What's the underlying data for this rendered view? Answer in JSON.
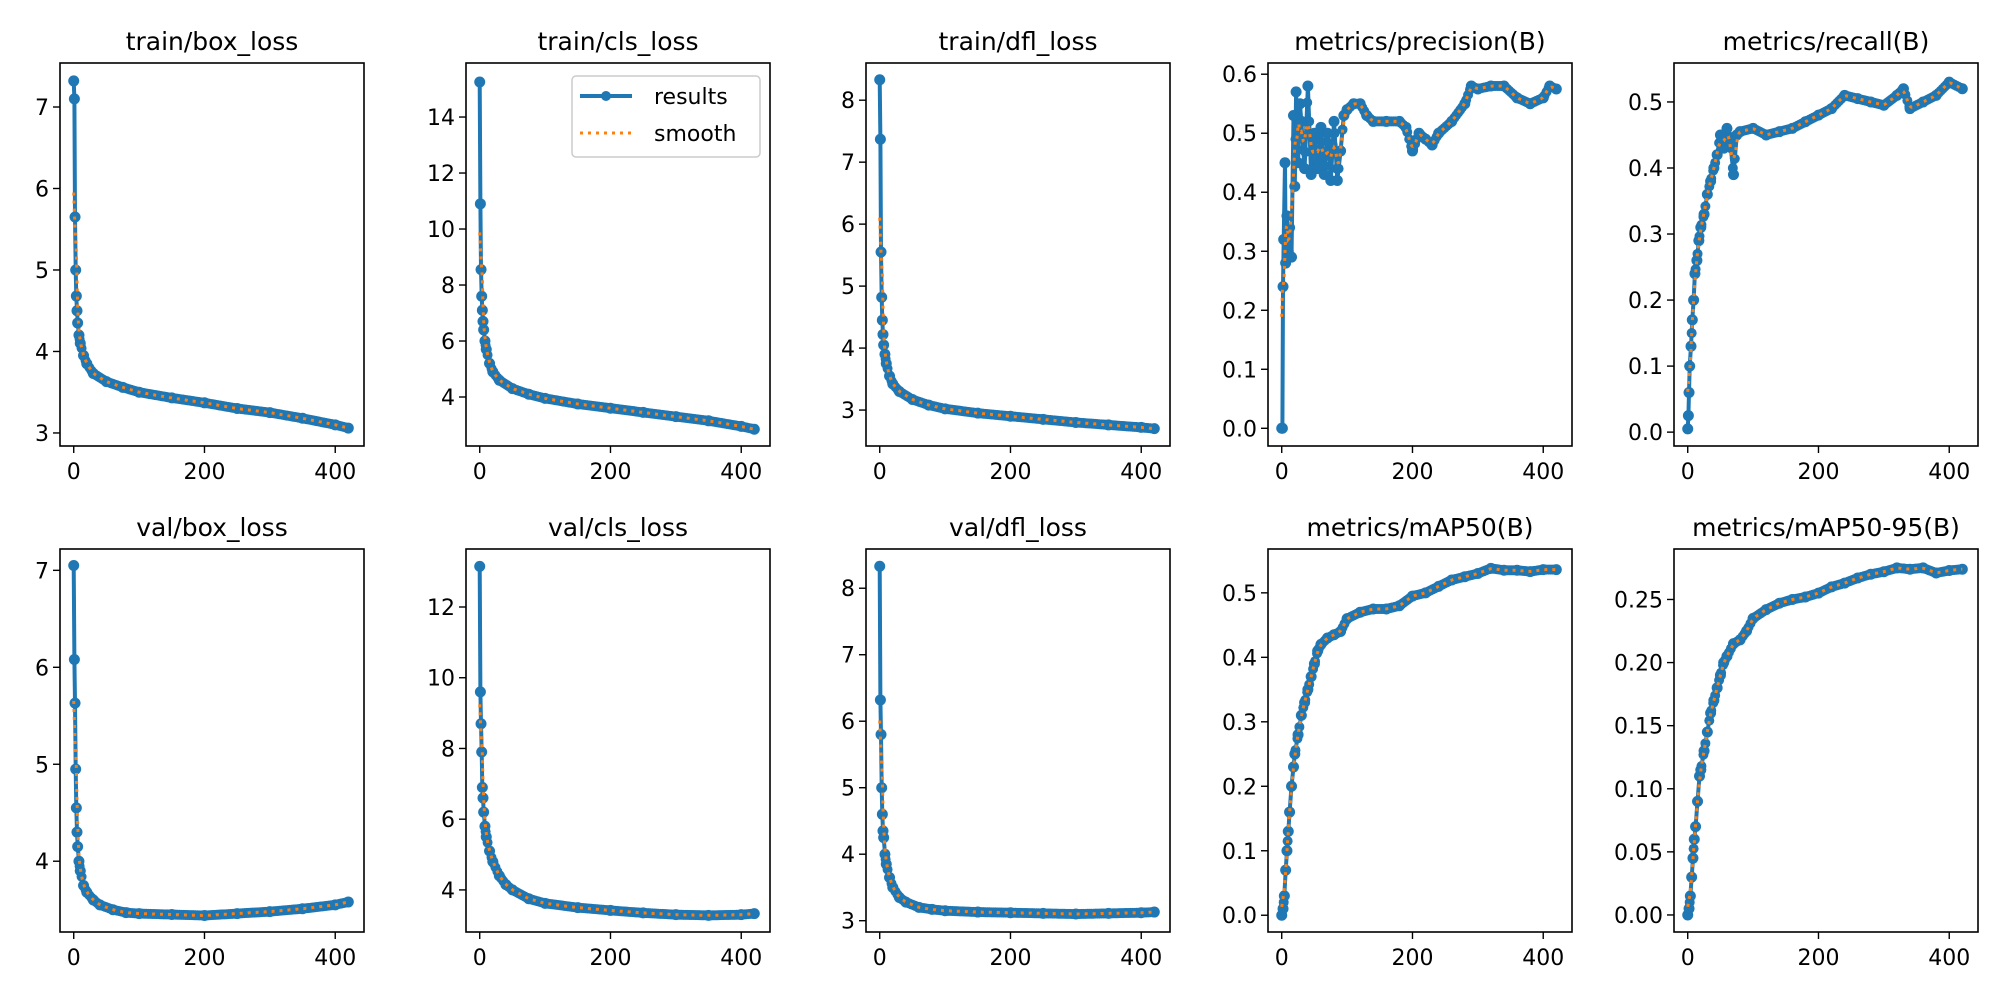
{
  "chart_data": {
    "type": "line",
    "layout": "2 rows x 5 columns",
    "legend": {
      "placement": "top-right",
      "panel": "train/cls_loss",
      "entries": [
        "results",
        "smooth"
      ]
    },
    "series_styles": {
      "results": {
        "color": "#1f77b4",
        "style": "solid line with circle markers"
      },
      "smooth": {
        "color": "#ff7f0e",
        "style": "dotted"
      }
    },
    "x_ticks": [
      0,
      200,
      400
    ],
    "xlim": [
      -21,
      444
    ],
    "panels": [
      {
        "title": "train/box_loss",
        "ylim": [
          2.84,
          7.54
        ],
        "y_ticks": [
          3,
          4,
          5,
          6,
          7
        ],
        "y_tick_labels": [
          "3",
          "4",
          "5",
          "6",
          "7"
        ],
        "x": [
          0,
          1,
          2,
          3,
          4,
          5,
          6,
          8,
          10,
          15,
          20,
          30,
          50,
          75,
          100,
          150,
          200,
          250,
          300,
          350,
          400,
          420
        ],
        "y": [
          7.32,
          7.1,
          5.65,
          5.0,
          4.68,
          4.5,
          4.35,
          4.2,
          4.1,
          3.95,
          3.85,
          3.73,
          3.63,
          3.56,
          3.5,
          3.43,
          3.37,
          3.3,
          3.25,
          3.18,
          3.1,
          3.06
        ]
      },
      {
        "title": "train/cls_loss",
        "ylim": [
          2.25,
          15.93
        ],
        "y_ticks": [
          4,
          6,
          8,
          10,
          12,
          14
        ],
        "y_tick_labels": [
          "4",
          "6",
          "8",
          "10",
          "12",
          "14"
        ],
        "x": [
          0,
          1,
          2,
          3,
          4,
          5,
          6,
          8,
          10,
          15,
          20,
          30,
          50,
          75,
          100,
          150,
          200,
          250,
          300,
          350,
          400,
          420
        ],
        "y": [
          15.25,
          10.9,
          8.55,
          7.6,
          7.1,
          6.7,
          6.4,
          6.0,
          5.7,
          5.2,
          4.9,
          4.6,
          4.3,
          4.1,
          3.95,
          3.75,
          3.6,
          3.45,
          3.3,
          3.15,
          2.95,
          2.85
        ]
      },
      {
        "title": "train/dfl_loss",
        "ylim": [
          2.42,
          8.6
        ],
        "y_ticks": [
          3,
          4,
          5,
          6,
          7,
          8
        ],
        "y_tick_labels": [
          "3",
          "4",
          "5",
          "6",
          "7",
          "8"
        ],
        "x": [
          0,
          1,
          2,
          3,
          4,
          5,
          6,
          8,
          10,
          15,
          20,
          30,
          50,
          75,
          100,
          150,
          200,
          250,
          300,
          350,
          400,
          420
        ],
        "y": [
          8.33,
          7.37,
          5.55,
          4.82,
          4.45,
          4.22,
          4.05,
          3.9,
          3.75,
          3.55,
          3.42,
          3.3,
          3.17,
          3.08,
          3.02,
          2.95,
          2.9,
          2.85,
          2.8,
          2.76,
          2.72,
          2.7
        ]
      },
      {
        "title": "metrics/precision(B)",
        "ylim": [
          -0.03,
          0.619
        ],
        "y_ticks": [
          0,
          0.1,
          0.2,
          0.3,
          0.4,
          0.5,
          0.6
        ],
        "y_tick_labels": [
          "0.0",
          "0.1",
          "0.2",
          "0.3",
          "0.4",
          "0.5",
          "0.6"
        ],
        "x": [
          0,
          1,
          2,
          3,
          5,
          6,
          8,
          10,
          12,
          15,
          18,
          20,
          22,
          25,
          28,
          30,
          35,
          40,
          45,
          50,
          55,
          60,
          65,
          70,
          75,
          80,
          85,
          90,
          95,
          100,
          110,
          120,
          130,
          140,
          160,
          180,
          190,
          200,
          210,
          220,
          230,
          240,
          260,
          280,
          290,
          300,
          320,
          340,
          360,
          380,
          400,
          410,
          420
        ],
        "y": [
          0,
          0,
          0.24,
          0.32,
          0.45,
          0.28,
          0.36,
          0.3,
          0.34,
          0.29,
          0.53,
          0.41,
          0.57,
          0.45,
          0.55,
          0.52,
          0.44,
          0.58,
          0.43,
          0.5,
          0.44,
          0.51,
          0.43,
          0.5,
          0.42,
          0.52,
          0.42,
          0.47,
          0.53,
          0.54,
          0.55,
          0.55,
          0.53,
          0.52,
          0.52,
          0.52,
          0.51,
          0.47,
          0.5,
          0.49,
          0.48,
          0.5,
          0.52,
          0.55,
          0.58,
          0.575,
          0.58,
          0.58,
          0.56,
          0.55,
          0.56,
          0.58,
          0.575
        ]
      },
      {
        "title": "metrics/recall(B)",
        "ylim": [
          -0.021,
          0.559
        ],
        "y_ticks": [
          0,
          0.1,
          0.2,
          0.3,
          0.4,
          0.5
        ],
        "y_tick_labels": [
          "0.0",
          "0.1",
          "0.2",
          "0.3",
          "0.4",
          "0.5"
        ],
        "x": [
          0,
          1,
          2,
          3,
          5,
          7,
          9,
          11,
          14,
          17,
          20,
          25,
          30,
          35,
          40,
          45,
          50,
          55,
          60,
          65,
          70,
          75,
          80,
          100,
          120,
          140,
          160,
          180,
          200,
          220,
          240,
          260,
          280,
          300,
          320,
          330,
          340,
          360,
          380,
          400,
          420
        ],
        "y": [
          0.005,
          0.025,
          0.06,
          0.1,
          0.13,
          0.17,
          0.2,
          0.24,
          0.26,
          0.29,
          0.31,
          0.33,
          0.36,
          0.38,
          0.4,
          0.42,
          0.45,
          0.43,
          0.46,
          0.44,
          0.39,
          0.45,
          0.455,
          0.46,
          0.45,
          0.455,
          0.46,
          0.47,
          0.48,
          0.49,
          0.51,
          0.505,
          0.5,
          0.495,
          0.51,
          0.52,
          0.49,
          0.5,
          0.51,
          0.53,
          0.52
        ]
      },
      {
        "title": "val/box_loss",
        "ylim": [
          3.27,
          7.22
        ],
        "y_ticks": [
          4,
          5,
          6,
          7
        ],
        "y_tick_labels": [
          "4",
          "5",
          "6",
          "7"
        ],
        "x": [
          0,
          1,
          2,
          3,
          4,
          5,
          6,
          8,
          10,
          15,
          20,
          30,
          40,
          60,
          80,
          100,
          150,
          200,
          250,
          300,
          350,
          400,
          420
        ],
        "y": [
          7.05,
          6.08,
          5.63,
          4.95,
          4.55,
          4.3,
          4.15,
          4.0,
          3.9,
          3.75,
          3.68,
          3.6,
          3.55,
          3.5,
          3.47,
          3.46,
          3.45,
          3.44,
          3.46,
          3.48,
          3.51,
          3.55,
          3.58
        ]
      },
      {
        "title": "val/cls_loss",
        "ylim": [
          2.81,
          13.64
        ],
        "y_ticks": [
          4,
          6,
          8,
          10,
          12
        ],
        "y_tick_labels": [
          "4",
          "6",
          "8",
          "10",
          "12"
        ],
        "x": [
          0,
          1,
          2,
          3,
          4,
          5,
          6,
          8,
          10,
          15,
          20,
          30,
          40,
          50,
          75,
          100,
          150,
          200,
          250,
          300,
          350,
          400,
          420
        ],
        "y": [
          13.15,
          9.6,
          8.7,
          7.9,
          6.9,
          6.6,
          6.2,
          5.8,
          5.5,
          5.1,
          4.8,
          4.4,
          4.15,
          4.0,
          3.75,
          3.62,
          3.5,
          3.42,
          3.35,
          3.3,
          3.28,
          3.3,
          3.33
        ]
      },
      {
        "title": "val/dfl_loss",
        "ylim": [
          2.83,
          8.59
        ],
        "y_ticks": [
          3,
          4,
          5,
          6,
          7,
          8
        ],
        "y_tick_labels": [
          "3",
          "4",
          "5",
          "6",
          "7",
          "8"
        ],
        "x": [
          0,
          1,
          2,
          3,
          4,
          5,
          6,
          8,
          10,
          15,
          20,
          30,
          40,
          60,
          80,
          100,
          150,
          200,
          250,
          300,
          350,
          400,
          420
        ],
        "y": [
          8.33,
          6.32,
          5.8,
          5.0,
          4.6,
          4.35,
          4.25,
          4.0,
          3.85,
          3.65,
          3.5,
          3.35,
          3.28,
          3.2,
          3.17,
          3.15,
          3.13,
          3.12,
          3.11,
          3.1,
          3.11,
          3.12,
          3.13
        ]
      },
      {
        "title": "metrics/mAP50(B)",
        "ylim": [
          -0.026,
          0.568
        ],
        "y_ticks": [
          0,
          0.1,
          0.2,
          0.3,
          0.4,
          0.5
        ],
        "y_tick_labels": [
          "0.0",
          "0.1",
          "0.2",
          "0.3",
          "0.4",
          "0.5"
        ],
        "x": [
          0,
          2,
          4,
          6,
          8,
          10,
          12,
          15,
          18,
          20,
          25,
          30,
          35,
          40,
          45,
          50,
          55,
          60,
          70,
          80,
          90,
          100,
          120,
          140,
          160,
          180,
          200,
          220,
          240,
          260,
          280,
          300,
          320,
          340,
          360,
          380,
          400,
          420
        ],
        "y": [
          0,
          0.01,
          0.03,
          0.07,
          0.1,
          0.13,
          0.16,
          0.2,
          0.23,
          0.25,
          0.28,
          0.31,
          0.33,
          0.35,
          0.37,
          0.39,
          0.41,
          0.42,
          0.43,
          0.435,
          0.44,
          0.46,
          0.47,
          0.475,
          0.475,
          0.48,
          0.495,
          0.5,
          0.51,
          0.52,
          0.525,
          0.53,
          0.538,
          0.535,
          0.535,
          0.533,
          0.536,
          0.536
        ]
      },
      {
        "title": "metrics/mAP50-95(B)",
        "ylim": [
          -0.0135,
          0.29
        ],
        "y_ticks": [
          0,
          0.05,
          0.1,
          0.15,
          0.2,
          0.25
        ],
        "y_tick_labels": [
          "0.00",
          "0.05",
          "0.10",
          "0.15",
          "0.20",
          "0.25"
        ],
        "x": [
          0,
          2,
          4,
          6,
          8,
          10,
          12,
          15,
          18,
          20,
          25,
          30,
          35,
          40,
          45,
          50,
          55,
          60,
          70,
          80,
          90,
          100,
          120,
          140,
          160,
          180,
          200,
          220,
          240,
          260,
          280,
          300,
          320,
          340,
          360,
          380,
          400,
          420
        ],
        "y": [
          0,
          0.005,
          0.015,
          0.03,
          0.045,
          0.06,
          0.07,
          0.09,
          0.11,
          0.115,
          0.13,
          0.145,
          0.16,
          0.17,
          0.18,
          0.19,
          0.2,
          0.205,
          0.215,
          0.218,
          0.225,
          0.235,
          0.242,
          0.247,
          0.25,
          0.252,
          0.255,
          0.26,
          0.263,
          0.267,
          0.27,
          0.272,
          0.275,
          0.274,
          0.275,
          0.271,
          0.273,
          0.274
        ]
      }
    ]
  }
}
